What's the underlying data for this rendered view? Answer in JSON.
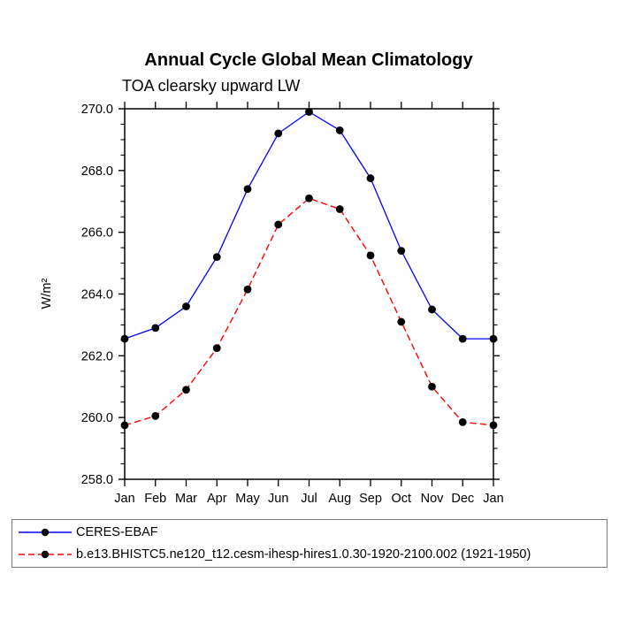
{
  "chart_data": {
    "type": "line",
    "title": "Annual Cycle Global Mean Climatology",
    "subtitle": "TOA clearsky upward LW",
    "ylabel": "W/m²",
    "xlabel": "",
    "categories": [
      "Jan",
      "Feb",
      "Mar",
      "Apr",
      "May",
      "Jun",
      "Jul",
      "Aug",
      "Sep",
      "Oct",
      "Nov",
      "Dec",
      "Jan"
    ],
    "series": [
      {
        "name": "CERES-EBAF",
        "color": "#0000ff",
        "line_style": "solid",
        "marker": "circle",
        "marker_color": "#000000",
        "values": [
          262.55,
          262.9,
          263.6,
          265.2,
          267.4,
          269.2,
          269.9,
          269.3,
          267.75,
          265.4,
          263.5,
          262.55,
          262.55
        ]
      },
      {
        "name": "b.e13.BHISTC5.ne120_t12.cesm-ihesp-hires1.0.30-1920-2100.002 (1921-1950)",
        "color": "#ff0000",
        "line_style": "dashed",
        "marker": "circle",
        "marker_color": "#000000",
        "values": [
          259.75,
          260.05,
          260.9,
          262.25,
          264.15,
          266.25,
          267.1,
          266.75,
          265.25,
          263.1,
          261.0,
          259.85,
          259.75
        ]
      }
    ],
    "ylim": [
      258.0,
      270.0
    ],
    "y_major_ticks": [
      258,
      260,
      262,
      264,
      266,
      268,
      270
    ],
    "y_tick_labels": [
      "258.0",
      "260.0",
      "262.0",
      "264.0",
      "266.0",
      "268.0",
      "270.0"
    ],
    "y_minor_step": 0.5,
    "grid": false,
    "legend_position": "bottom",
    "axis_color": "#000000",
    "background_color": "#ffffff"
  }
}
